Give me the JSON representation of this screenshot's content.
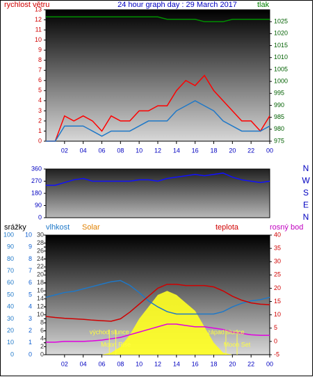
{
  "chart_data": [
    {
      "type": "line",
      "title": "24 hour graph day : 29 March 2017",
      "y_label": "rychlost větru",
      "y2_label": "tlak",
      "xlim": [
        0,
        24
      ],
      "xticks": [
        {
          "value": 2,
          "label": "02"
        },
        {
          "value": 4,
          "label": "04"
        },
        {
          "value": 6,
          "label": "06"
        },
        {
          "value": 8,
          "label": "08"
        },
        10,
        12,
        14,
        16,
        18,
        20,
        22,
        {
          "value": 24,
          "label": "00"
        }
      ],
      "ylim": [
        0,
        13
      ],
      "yticks": [
        0,
        1,
        2,
        3,
        4,
        5,
        6,
        7,
        8,
        9,
        10,
        11,
        12,
        13
      ],
      "ytick_color": "#d00000",
      "y2lim": [
        975,
        1030
      ],
      "y2ticks": [
        975,
        980,
        985,
        990,
        995,
        1000,
        1005,
        1010,
        1015,
        1020,
        1025
      ],
      "y2tick_color": "#006000",
      "x": [
        0,
        1,
        2,
        3,
        4,
        5,
        6,
        7,
        8,
        9,
        10,
        11,
        12,
        13,
        14,
        15,
        16,
        17,
        18,
        19,
        20,
        21,
        22,
        23,
        24
      ],
      "series": [
        {
          "color": "#ff0000",
          "values": [
            0,
            0,
            2.5,
            2,
            2.5,
            2,
            1,
            2.5,
            2,
            2,
            3,
            3,
            3.5,
            3.5,
            5,
            6,
            5.5,
            6.5,
            5,
            4,
            3,
            2,
            2,
            1,
            2.5
          ]
        },
        {
          "color": "#1e78c8",
          "values": [
            0,
            0,
            1.5,
            1.5,
            1.5,
            1,
            0.5,
            1,
            1,
            1,
            1.5,
            2,
            2,
            2,
            3,
            3.5,
            4,
            3.5,
            3,
            2,
            1.5,
            1,
            1,
            1,
            1.5
          ]
        },
        {
          "color": "#009000",
          "axis": "y2",
          "values": [
            1027,
            1027,
            1027,
            1027,
            1027,
            1027,
            1027,
            1027,
            1027,
            1027,
            1027,
            1027,
            1027,
            1026,
            1026,
            1026,
            1026,
            1025,
            1025,
            1025,
            1026,
            1026,
            1026,
            1026,
            1026
          ]
        }
      ]
    },
    {
      "type": "line",
      "xlim": [
        0,
        24
      ],
      "ylim": [
        0,
        360
      ],
      "yticks": [
        0,
        90,
        180,
        270,
        360
      ],
      "ytick_color": "#0000c0",
      "direction_labels": [
        "N",
        "W",
        "S",
        "E",
        "N"
      ],
      "x": [
        0,
        1,
        2,
        3,
        4,
        5,
        6,
        7,
        8,
        9,
        10,
        11,
        12,
        13,
        14,
        15,
        16,
        17,
        18,
        19,
        20,
        21,
        22,
        23,
        24
      ],
      "series": [
        {
          "color": "#1010ff",
          "values": [
            240,
            240,
            260,
            280,
            290,
            270,
            270,
            270,
            270,
            270,
            280,
            280,
            270,
            290,
            300,
            310,
            320,
            310,
            320,
            330,
            300,
            280,
            270,
            260,
            270
          ]
        }
      ]
    },
    {
      "type": "line",
      "labels": [
        {
          "text": "srážky",
          "color": "#000000"
        },
        {
          "text": "vlhkost",
          "color": "#1e78c8"
        },
        {
          "text": "Solar",
          "color": "#e08000"
        },
        {
          "text": "teplota",
          "color": "#d00000"
        },
        {
          "text": "rosný bod",
          "color": "#c000c0"
        }
      ],
      "xlim": [
        0,
        24
      ],
      "xticks": [
        {
          "value": 2,
          "label": "02"
        },
        {
          "value": 4,
          "label": "04"
        },
        {
          "value": 6,
          "label": "06"
        },
        {
          "value": 8,
          "label": "08"
        },
        10,
        12,
        14,
        16,
        18,
        20,
        22,
        {
          "value": 24,
          "label": "00"
        }
      ],
      "ylim": [
        0,
        100
      ],
      "yticks": [
        0,
        10,
        20,
        30,
        40,
        50,
        60,
        70,
        80,
        90,
        100
      ],
      "ytick_color": "#1e78c8",
      "y3lim": [
        0,
        10
      ],
      "y3ticks": [
        0,
        1,
        2,
        3,
        4,
        5,
        6,
        7,
        8,
        9,
        10
      ],
      "y3tick_color": "#1060d0",
      "y4lim": [
        0,
        30
      ],
      "y4ticks": [
        0,
        2,
        4,
        6,
        8,
        10,
        12,
        14,
        16,
        18,
        20,
        22,
        24,
        26,
        28,
        30
      ],
      "y4tick_color": "#303030",
      "y2lim": [
        -5,
        40
      ],
      "y2ticks": [
        -5,
        0,
        5,
        10,
        15,
        20,
        25,
        30,
        35,
        40
      ],
      "y2tick_color": "#d00000",
      "x": [
        0,
        1,
        2,
        3,
        4,
        5,
        6,
        7,
        8,
        9,
        10,
        11,
        12,
        13,
        14,
        15,
        16,
        17,
        18,
        19,
        20,
        21,
        22,
        23,
        24
      ],
      "series": [
        {
          "color": "#ffff20",
          "axis": "y4",
          "area": true,
          "values": [
            0,
            0,
            0,
            0,
            0,
            0,
            0,
            0.5,
            2,
            5,
            9,
            12,
            15,
            16,
            15,
            13,
            11,
            7,
            3,
            0.5,
            0,
            0,
            0,
            0,
            0
          ]
        },
        {
          "color": "#1e78c8",
          "values": [
            48,
            50,
            52,
            53,
            55,
            57,
            59,
            61,
            62,
            58,
            52,
            45,
            40,
            36,
            34,
            34,
            34,
            34,
            34,
            36,
            40,
            43,
            45,
            46,
            48
          ]
        },
        {
          "color": "#d00000",
          "axis": "y2",
          "values": [
            9.4,
            9,
            8.7,
            8.5,
            8.3,
            8,
            7.8,
            7.6,
            8.5,
            11,
            14,
            17,
            20,
            21.5,
            21.5,
            21,
            21,
            21,
            20.5,
            19,
            17,
            15.5,
            14.5,
            14,
            13.8
          ]
        },
        {
          "color": "#e000e0",
          "axis": "y2",
          "values": [
            -0.3,
            -0.3,
            0,
            0,
            0,
            0.2,
            0.5,
            1,
            1.5,
            2.5,
            3.5,
            4.5,
            5.5,
            6.5,
            6.5,
            6,
            5.5,
            5.5,
            5,
            4.5,
            3.5,
            3,
            2.5,
            2.3,
            2.3
          ]
        }
      ],
      "annotations": [
        {
          "text": "východ slunce",
          "x": 6.8
        },
        {
          "text": "Moon Rise",
          "x": 7.5
        },
        {
          "text": "západ slunce",
          "x": 19.3
        },
        {
          "text": "Moon Set",
          "x": 20.5
        }
      ]
    }
  ]
}
